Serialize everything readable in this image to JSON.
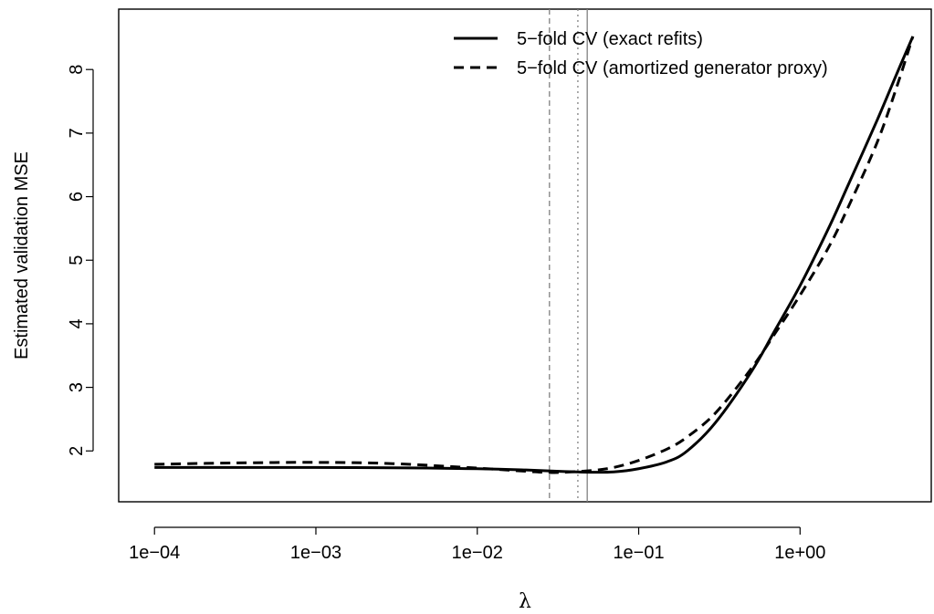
{
  "chart_data": {
    "type": "line",
    "xlabel": "λ",
    "ylabel": "Estimated validation MSE",
    "x_scale": "log10",
    "x_ticks": [
      {
        "value": 0.0001,
        "label": "1e−04"
      },
      {
        "value": 0.001,
        "label": "1e−03"
      },
      {
        "value": 0.01,
        "label": "1e−02"
      },
      {
        "value": 0.1,
        "label": "1e−01"
      },
      {
        "value": 1,
        "label": "1e+00"
      }
    ],
    "y_ticks": [
      {
        "value": 2,
        "label": "2"
      },
      {
        "value": 3,
        "label": "3"
      },
      {
        "value": 4,
        "label": "4"
      },
      {
        "value": 5,
        "label": "5"
      },
      {
        "value": 6,
        "label": "6"
      },
      {
        "value": 7,
        "label": "7"
      },
      {
        "value": 8,
        "label": "8"
      }
    ],
    "xlim": [
      6e-05,
      6.5
    ],
    "ylim": [
      1.2,
      8.95
    ],
    "legend_position": "top-right",
    "grid": false,
    "series": [
      {
        "name": "5−fold CV (exact refits)",
        "style": "solid",
        "color": "#000000",
        "x": [
          0.0001,
          0.0003,
          0.001,
          0.003,
          0.01,
          0.02,
          0.035,
          0.05,
          0.07,
          0.1,
          0.15,
          0.2,
          0.3,
          0.5,
          0.7,
          1.0,
          1.5,
          2.0,
          3.0,
          4.0,
          5.0
        ],
        "y": [
          1.74,
          1.74,
          1.74,
          1.735,
          1.72,
          1.7,
          1.675,
          1.665,
          1.67,
          1.72,
          1.83,
          2.0,
          2.45,
          3.25,
          3.9,
          4.6,
          5.5,
          6.2,
          7.2,
          7.95,
          8.52
        ]
      },
      {
        "name": "5−fold CV (amortized generator proxy)",
        "style": "dashed",
        "color": "#000000",
        "x": [
          0.0001,
          0.0003,
          0.001,
          0.003,
          0.01,
          0.02,
          0.03,
          0.05,
          0.07,
          0.1,
          0.15,
          0.2,
          0.3,
          0.5,
          0.7,
          1.0,
          1.5,
          2.0,
          3.0,
          4.0,
          5.0
        ],
        "y": [
          1.79,
          1.81,
          1.82,
          1.8,
          1.73,
          1.68,
          1.66,
          1.69,
          1.74,
          1.85,
          2.03,
          2.22,
          2.6,
          3.3,
          3.85,
          4.45,
          5.2,
          5.85,
          6.85,
          7.75,
          8.52
        ]
      }
    ],
    "reference_lines": [
      {
        "x": 0.028,
        "style": "dashed",
        "color": "#808080"
      },
      {
        "x": 0.042,
        "style": "dotted",
        "color": "#808080"
      },
      {
        "x": 0.048,
        "style": "solid",
        "color": "#808080"
      }
    ]
  }
}
